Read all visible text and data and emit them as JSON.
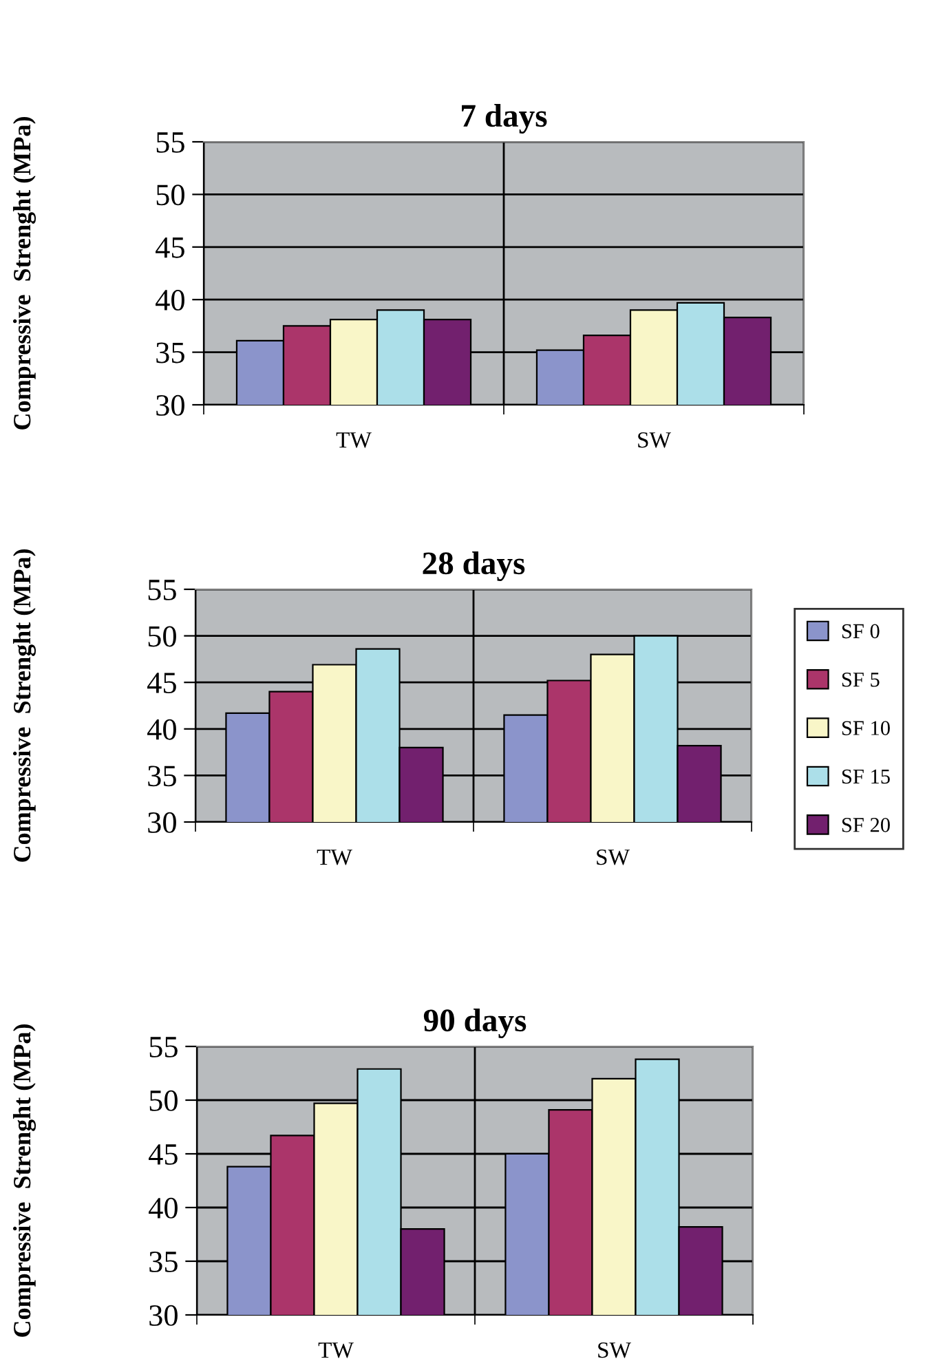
{
  "chart_data": [
    {
      "type": "bar",
      "title": "7 days",
      "ylabel": "Compressive  Strenght (MPa)",
      "categories": [
        "TW",
        "SW"
      ],
      "ylim": [
        30,
        55
      ],
      "yticks": [
        30,
        35,
        40,
        45,
        50,
        55
      ],
      "grid": true,
      "legend": false,
      "series": [
        {
          "color": "#8b94cb",
          "values": [
            36.1,
            35.2
          ]
        },
        {
          "color": "#ab356a",
          "values": [
            37.5,
            36.6
          ]
        },
        {
          "color": "#f9f6c8",
          "values": [
            38.1,
            39.0
          ]
        },
        {
          "color": "#acdfe9",
          "values": [
            39.0,
            39.7
          ]
        },
        {
          "color": "#72206e",
          "values": [
            38.1,
            38.3
          ]
        }
      ]
    },
    {
      "type": "bar",
      "title": "28 days",
      "ylabel": "Compressive  Strenght (MPa)",
      "categories": [
        "TW",
        "SW"
      ],
      "ylim": [
        30,
        55
      ],
      "yticks": [
        30,
        35,
        40,
        45,
        50,
        55
      ],
      "grid": true,
      "legend": "right",
      "series": [
        {
          "name": "SF 0",
          "color": "#8b94cb",
          "values": [
            41.7,
            41.5
          ]
        },
        {
          "name": "SF 5",
          "color": "#ab356a",
          "values": [
            44.0,
            45.2
          ]
        },
        {
          "name": "SF 10",
          "color": "#f9f6c8",
          "values": [
            46.9,
            48.0
          ]
        },
        {
          "name": "SF 15",
          "color": "#acdfe9",
          "values": [
            48.6,
            50.0
          ]
        },
        {
          "name": "SF 20",
          "color": "#72206e",
          "values": [
            38.0,
            38.2
          ]
        }
      ]
    },
    {
      "type": "bar",
      "title": "90 days",
      "ylabel": "Compressive  Strenght (MPa)",
      "categories": [
        "TW",
        "SW"
      ],
      "ylim": [
        30,
        55
      ],
      "yticks": [
        30,
        35,
        40,
        45,
        50,
        55
      ],
      "grid": true,
      "legend": false,
      "series": [
        {
          "color": "#8b94cb",
          "values": [
            43.8,
            45.0
          ]
        },
        {
          "color": "#ab356a",
          "values": [
            46.7,
            49.1
          ]
        },
        {
          "color": "#f9f6c8",
          "values": [
            49.7,
            52.0
          ]
        },
        {
          "color": "#acdfe9",
          "values": [
            52.9,
            53.8
          ]
        },
        {
          "color": "#72206e",
          "values": [
            38.0,
            38.2
          ]
        }
      ]
    }
  ]
}
